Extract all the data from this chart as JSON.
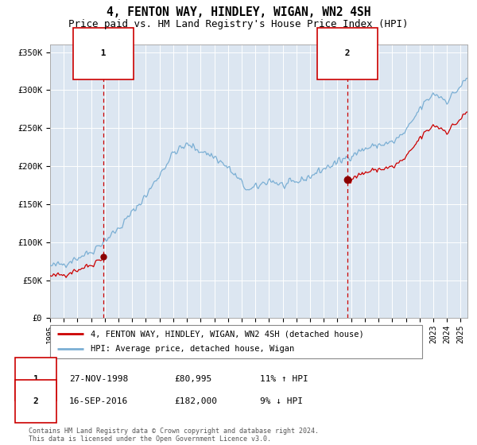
{
  "title": "4, FENTON WAY, HINDLEY, WIGAN, WN2 4SH",
  "subtitle": "Price paid vs. HM Land Registry's House Price Index (HPI)",
  "legend_line1": "4, FENTON WAY, HINDLEY, WIGAN, WN2 4SH (detached house)",
  "legend_line2": "HPI: Average price, detached house, Wigan",
  "annotation1_date": "27-NOV-1998",
  "annotation1_price": "£80,995",
  "annotation1_hpi": "11% ↑ HPI",
  "annotation2_date": "16-SEP-2016",
  "annotation2_price": "£182,000",
  "annotation2_hpi": "9% ↓ HPI",
  "footnote": "Contains HM Land Registry data © Crown copyright and database right 2024.\nThis data is licensed under the Open Government Licence v3.0.",
  "sale1_year": 1998.9,
  "sale1_price": 80995,
  "sale2_year": 2016.71,
  "sale2_price": 182000,
  "hpi_color": "#7bafd4",
  "price_color": "#cc0000",
  "dashed_line_color": "#cc0000",
  "plot_bg_color": "#dce6f1",
  "ylim": [
    0,
    360000
  ],
  "xlim_start": 1995,
  "xlim_end": 2025.5
}
